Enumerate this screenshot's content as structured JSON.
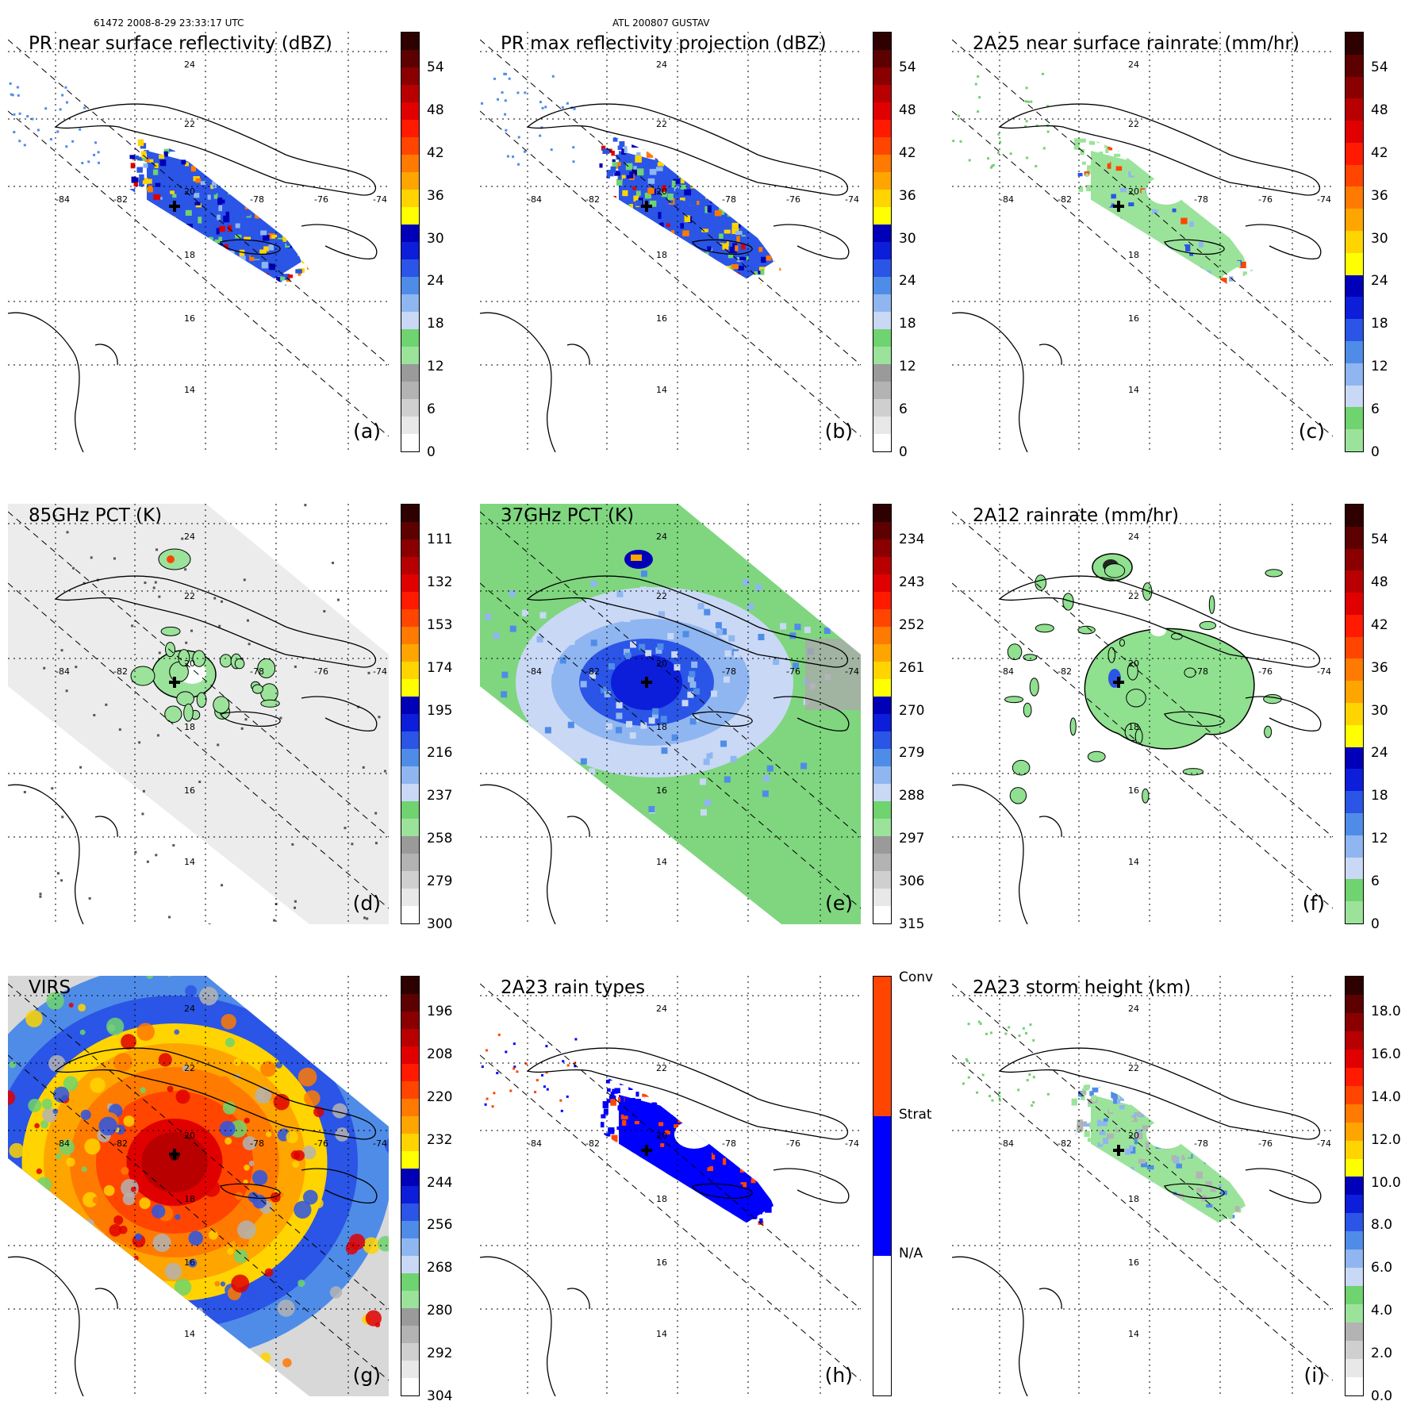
{
  "header": {
    "orbit_time": "61472 2008-8-29 23:33:17 UTC",
    "storm": "ATL 200807 GUSTAV"
  },
  "map_labels": {
    "lat": [
      "24",
      "22",
      "20",
      "18",
      "16",
      "14"
    ],
    "lon": [
      "-84",
      "-82",
      "-80",
      "-78",
      "-76",
      "-74"
    ]
  },
  "palettes": {
    "refl": [
      "#ffffff",
      "#e8e8e8",
      "#cfcfcf",
      "#b3b3b3",
      "#9a9a9a",
      "#9be39b",
      "#6fd36f",
      "#c9d8f5",
      "#8fb6f0",
      "#4f8ce8",
      "#2a55e6",
      "#0c1ed9",
      "#0000b8",
      "#ffff00",
      "#ffd400",
      "#ffa500",
      "#ff7a00",
      "#ff4500",
      "#ff1a00",
      "#e00000",
      "#b80000",
      "#8a0000",
      "#5c0000",
      "#2e0000"
    ],
    "rain": [
      "#9be39b",
      "#6fd36f",
      "#c9d8f5",
      "#8fb6f0",
      "#4f8ce8",
      "#2a55e6",
      "#0c1ed9",
      "#0000b8",
      "#ffff00",
      "#ffd400",
      "#ffa500",
      "#ff7a00",
      "#ff4500",
      "#ff1a00",
      "#e00000",
      "#b80000",
      "#8a0000",
      "#5c0000",
      "#2e0000"
    ],
    "pct": [
      "#ffffff",
      "#e8e8e8",
      "#cfcfcf",
      "#b3b3b3",
      "#9a9a9a",
      "#9be39b",
      "#6fd36f",
      "#c9d8f5",
      "#8fb6f0",
      "#4f8ce8",
      "#2a55e6",
      "#0c1ed9",
      "#0000b8",
      "#ffff00",
      "#ffd400",
      "#ffa500",
      "#ff7a00",
      "#ff4500",
      "#ff1a00",
      "#e00000",
      "#b80000",
      "#8a0000",
      "#5c0000",
      "#2e0000"
    ],
    "types": [
      "#ffffff",
      "#ffffff",
      "#0000ff",
      "#0000ff",
      "#ff4500",
      "#ff4500"
    ],
    "height": [
      "#ffffff",
      "#e8e8e8",
      "#cfcfcf",
      "#b3b3b3",
      "#9be39b",
      "#6fd36f",
      "#c9d8f5",
      "#8fb6f0",
      "#4f8ce8",
      "#2a55e6",
      "#0c1ed9",
      "#0000b8",
      "#ffff00",
      "#ffd400",
      "#ffa500",
      "#ff7a00",
      "#ff4500",
      "#ff1a00",
      "#e00000",
      "#b80000",
      "#8a0000",
      "#5c0000",
      "#2e0000"
    ]
  },
  "panels": [
    {
      "id": "a",
      "title": "PR near surface reflectivity (dBZ)",
      "label": "(a)",
      "palette": "refl",
      "ticks": [
        "54",
        "48",
        "42",
        "36",
        "30",
        "24",
        "18",
        "12",
        "6",
        "0"
      ],
      "mode": "swath",
      "storm": "refl"
    },
    {
      "id": "b",
      "title": "PR max reflectivity projection (dBZ)",
      "label": "(b)",
      "palette": "refl",
      "ticks": [
        "54",
        "48",
        "42",
        "36",
        "30",
        "24",
        "18",
        "12",
        "6",
        "0"
      ],
      "mode": "swath",
      "storm": "refl"
    },
    {
      "id": "c",
      "title": "2A25 near surface rainrate (mm/hr)",
      "label": "(c)",
      "palette": "rain",
      "ticks": [
        "54",
        "48",
        "42",
        "36",
        "30",
        "24",
        "18",
        "12",
        "6",
        "0"
      ],
      "mode": "swath",
      "storm": "rain"
    },
    {
      "id": "d",
      "title": "85GHz PCT (K)",
      "label": "(d)",
      "palette": "pct",
      "ticks": [
        "111",
        "132",
        "153",
        "174",
        "195",
        "216",
        "237",
        "258",
        "279",
        "300"
      ],
      "mode": "wide",
      "storm": "pct85"
    },
    {
      "id": "e",
      "title": "37GHz PCT (K)",
      "label": "(e)",
      "palette": "pct",
      "ticks": [
        "234",
        "243",
        "252",
        "261",
        "270",
        "279",
        "288",
        "297",
        "306",
        "315"
      ],
      "mode": "wide",
      "storm": "pct37"
    },
    {
      "id": "f",
      "title": "2A12 rainrate (mm/hr)",
      "label": "(f)",
      "palette": "rain",
      "ticks": [
        "54",
        "48",
        "42",
        "36",
        "30",
        "24",
        "18",
        "12",
        "6",
        "0"
      ],
      "mode": "open",
      "storm": "rain12"
    },
    {
      "id": "g",
      "title": "VIRS",
      "label": "(g)",
      "palette": "pct",
      "ticks": [
        "196",
        "208",
        "220",
        "232",
        "244",
        "256",
        "268",
        "280",
        "292",
        "304"
      ],
      "mode": "wide",
      "storm": "ir"
    },
    {
      "id": "h",
      "title": "2A23 rain types",
      "label": "(h)",
      "palette": "types",
      "ticks": [
        "Conv",
        "Strat",
        "N/A"
      ],
      "mode": "swath",
      "storm": "types"
    },
    {
      "id": "i",
      "title": "2A23 storm height (km)",
      "label": "(i)",
      "palette": "height",
      "ticks": [
        "18.0",
        "16.0",
        "14.0",
        "12.0",
        "10.0",
        "8.0",
        "6.0",
        "4.0",
        "2.0",
        "0.0"
      ],
      "mode": "swath",
      "storm": "height"
    }
  ]
}
